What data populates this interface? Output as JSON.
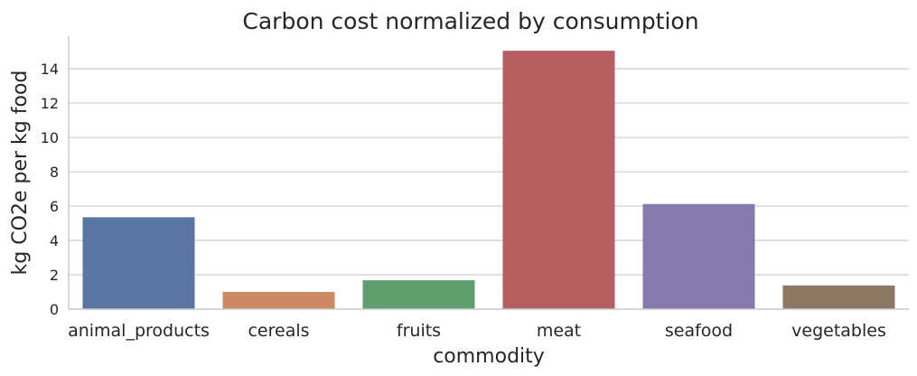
{
  "chart_data": {
    "type": "bar",
    "title": "Carbon cost normalized by consumption",
    "xlabel": "commodity",
    "ylabel": "kg CO2e per kg food",
    "categories": [
      "animal_products",
      "cereals",
      "fruits",
      "meat",
      "seafood",
      "vegetables"
    ],
    "values": [
      5.35,
      1.0,
      1.68,
      15.05,
      6.12,
      1.38
    ],
    "colors": [
      "#5975a4",
      "#cc8963",
      "#5f9e6e",
      "#b55d60",
      "#857aab",
      "#8d7866"
    ],
    "ylim": [
      0,
      15.9
    ],
    "yticks": [
      0,
      2,
      4,
      6,
      8,
      10,
      12,
      14
    ],
    "grid": true
  }
}
